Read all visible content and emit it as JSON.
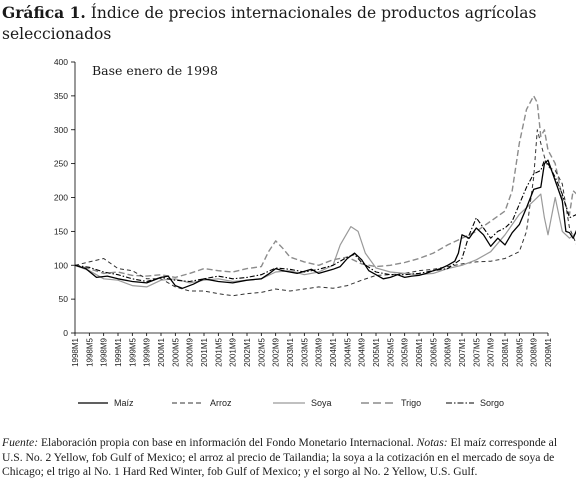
{
  "title": {
    "label": "Gráfica 1.",
    "text": "Índice de precios internacionales de productos agrícolas seleccionados"
  },
  "note": {
    "source_label": "Fuente:",
    "source_text": " Elaboración propia con base en información del Fondo Monetario Internacional. ",
    "notes_label": "Notas:",
    "notes_text": " El maíz corresponde al U.S. No. 2 Yellow, fob Gulf of Mexico; el arroz al precio de Tailandia; la soya a la cotización en el mercado de soya de Chicago; el trigo al No. 1 Hard Red Winter, fob Gulf of Mexico; y el sorgo al No. 2 Yellow, U.S. Gulf."
  },
  "chart_data": {
    "type": "line",
    "annotation": "Base enero de 1998",
    "ylim": [
      0,
      400
    ],
    "yticks": [
      0,
      50,
      100,
      150,
      200,
      250,
      300,
      350,
      400
    ],
    "xlabels": [
      "1998M1",
      "1998M5",
      "1998M9",
      "1999M1",
      "1999M5",
      "1999M9",
      "2000M1",
      "2000M5",
      "2000M9",
      "2001M1",
      "2001M5",
      "2001M9",
      "2002M1",
      "2002M5",
      "2002M9",
      "2003M1",
      "2003M5",
      "2003M9",
      "2004M1",
      "2004M5",
      "2004M9",
      "2005M1",
      "2005M5",
      "2005M9",
      "2006M1",
      "2006M5",
      "2006M9",
      "2007M1",
      "2007M5",
      "2007M9",
      "2008M1",
      "2008M5",
      "2008M9",
      "2009M1"
    ],
    "x_step_months": 4,
    "grid": false,
    "legend_position": "bottom",
    "series": [
      {
        "name": "Maíz",
        "style": "solid",
        "color": "#000000",
        "width": 1.3,
        "points": [
          [
            0,
            100
          ],
          [
            3,
            95
          ],
          [
            6,
            82
          ],
          [
            9,
            84
          ],
          [
            12,
            80
          ],
          [
            16,
            76
          ],
          [
            20,
            74
          ],
          [
            24,
            82
          ],
          [
            26,
            84
          ],
          [
            28,
            70
          ],
          [
            30,
            66
          ],
          [
            33,
            72
          ],
          [
            36,
            80
          ],
          [
            40,
            76
          ],
          [
            44,
            74
          ],
          [
            48,
            78
          ],
          [
            52,
            80
          ],
          [
            54,
            87
          ],
          [
            56,
            95
          ],
          [
            58,
            92
          ],
          [
            62,
            88
          ],
          [
            66,
            94
          ],
          [
            68,
            88
          ],
          [
            72,
            94
          ],
          [
            74,
            98
          ],
          [
            76,
            110
          ],
          [
            78,
            118
          ],
          [
            80,
            108
          ],
          [
            82,
            92
          ],
          [
            84,
            86
          ],
          [
            86,
            80
          ],
          [
            88,
            82
          ],
          [
            90,
            86
          ],
          [
            92,
            82
          ],
          [
            94,
            84
          ],
          [
            96,
            85
          ],
          [
            98,
            88
          ],
          [
            100,
            92
          ],
          [
            102,
            95
          ],
          [
            104,
            100
          ],
          [
            106,
            106
          ],
          [
            107,
            118
          ],
          [
            108,
            145
          ],
          [
            110,
            140
          ],
          [
            112,
            155
          ],
          [
            114,
            145
          ],
          [
            116,
            128
          ],
          [
            118,
            140
          ],
          [
            120,
            130
          ],
          [
            122,
            148
          ],
          [
            124,
            160
          ],
          [
            126,
            185
          ],
          [
            128,
            212
          ],
          [
            130,
            215
          ],
          [
            131,
            250
          ],
          [
            132,
            255
          ],
          [
            134,
            225
          ],
          [
            136,
            195
          ],
          [
            137,
            150
          ],
          [
            138,
            148
          ],
          [
            139,
            140
          ],
          [
            140,
            152
          ]
        ]
      },
      {
        "name": "Arroz",
        "style": "dashed",
        "color": "#333333",
        "width": 1.0,
        "points": [
          [
            0,
            100
          ],
          [
            4,
            105
          ],
          [
            8,
            110
          ],
          [
            12,
            95
          ],
          [
            16,
            92
          ],
          [
            20,
            80
          ],
          [
            24,
            80
          ],
          [
            28,
            68
          ],
          [
            32,
            62
          ],
          [
            36,
            62
          ],
          [
            40,
            58
          ],
          [
            44,
            55
          ],
          [
            48,
            58
          ],
          [
            52,
            60
          ],
          [
            56,
            65
          ],
          [
            60,
            62
          ],
          [
            64,
            65
          ],
          [
            68,
            68
          ],
          [
            72,
            66
          ],
          [
            76,
            70
          ],
          [
            80,
            78
          ],
          [
            84,
            85
          ],
          [
            88,
            86
          ],
          [
            92,
            88
          ],
          [
            96,
            92
          ],
          [
            100,
            94
          ],
          [
            104,
            98
          ],
          [
            108,
            102
          ],
          [
            112,
            105
          ],
          [
            116,
            106
          ],
          [
            120,
            110
          ],
          [
            124,
            120
          ],
          [
            126,
            150
          ],
          [
            128,
            230
          ],
          [
            129,
            300
          ],
          [
            130,
            280
          ],
          [
            131,
            260
          ],
          [
            132,
            245
          ],
          [
            134,
            240
          ],
          [
            136,
            220
          ],
          [
            138,
            155
          ],
          [
            140,
            130
          ]
        ]
      },
      {
        "name": "Soya",
        "style": "solid",
        "color": "#9a9a9a",
        "width": 1.2,
        "points": [
          [
            0,
            100
          ],
          [
            4,
            92
          ],
          [
            8,
            80
          ],
          [
            12,
            78
          ],
          [
            16,
            70
          ],
          [
            20,
            68
          ],
          [
            24,
            78
          ],
          [
            28,
            80
          ],
          [
            32,
            74
          ],
          [
            36,
            78
          ],
          [
            40,
            80
          ],
          [
            44,
            76
          ],
          [
            48,
            78
          ],
          [
            52,
            80
          ],
          [
            56,
            90
          ],
          [
            60,
            92
          ],
          [
            64,
            86
          ],
          [
            68,
            90
          ],
          [
            72,
            100
          ],
          [
            74,
            130
          ],
          [
            76,
            148
          ],
          [
            77,
            157
          ],
          [
            79,
            150
          ],
          [
            81,
            118
          ],
          [
            84,
            96
          ],
          [
            88,
            90
          ],
          [
            92,
            88
          ],
          [
            96,
            86
          ],
          [
            100,
            88
          ],
          [
            104,
            95
          ],
          [
            108,
            100
          ],
          [
            112,
            108
          ],
          [
            116,
            120
          ],
          [
            120,
            145
          ],
          [
            124,
            175
          ],
          [
            128,
            195
          ],
          [
            130,
            205
          ],
          [
            131,
            170
          ],
          [
            132,
            145
          ],
          [
            134,
            200
          ],
          [
            136,
            150
          ],
          [
            138,
            140
          ],
          [
            140,
            148
          ]
        ]
      },
      {
        "name": "Trigo",
        "style": "dashed",
        "color": "#8c8c8c",
        "width": 1.4,
        "points": [
          [
            0,
            100
          ],
          [
            4,
            95
          ],
          [
            8,
            88
          ],
          [
            12,
            90
          ],
          [
            16,
            85
          ],
          [
            20,
            84
          ],
          [
            24,
            86
          ],
          [
            28,
            82
          ],
          [
            32,
            88
          ],
          [
            36,
            95
          ],
          [
            40,
            92
          ],
          [
            44,
            90
          ],
          [
            48,
            95
          ],
          [
            52,
            98
          ],
          [
            54,
            120
          ],
          [
            56,
            136
          ],
          [
            58,
            125
          ],
          [
            60,
            112
          ],
          [
            64,
            105
          ],
          [
            68,
            100
          ],
          [
            72,
            108
          ],
          [
            76,
            112
          ],
          [
            80,
            102
          ],
          [
            84,
            98
          ],
          [
            88,
            100
          ],
          [
            92,
            104
          ],
          [
            96,
            110
          ],
          [
            100,
            118
          ],
          [
            104,
            130
          ],
          [
            108,
            140
          ],
          [
            112,
            150
          ],
          [
            116,
            165
          ],
          [
            120,
            180
          ],
          [
            122,
            210
          ],
          [
            124,
            280
          ],
          [
            126,
            330
          ],
          [
            128,
            350
          ],
          [
            129,
            340
          ],
          [
            130,
            290
          ],
          [
            131,
            300
          ],
          [
            132,
            270
          ],
          [
            134,
            250
          ],
          [
            136,
            200
          ],
          [
            138,
            175
          ],
          [
            139,
            210
          ],
          [
            140,
            205
          ]
        ]
      },
      {
        "name": "Sorgo",
        "style": "dashdot",
        "color": "#000000",
        "width": 1.1,
        "points": [
          [
            0,
            100
          ],
          [
            4,
            97
          ],
          [
            8,
            90
          ],
          [
            12,
            86
          ],
          [
            16,
            80
          ],
          [
            20,
            76
          ],
          [
            24,
            82
          ],
          [
            28,
            78
          ],
          [
            32,
            76
          ],
          [
            36,
            80
          ],
          [
            40,
            84
          ],
          [
            44,
            80
          ],
          [
            48,
            82
          ],
          [
            52,
            86
          ],
          [
            56,
            96
          ],
          [
            60,
            94
          ],
          [
            64,
            90
          ],
          [
            68,
            94
          ],
          [
            72,
            100
          ],
          [
            76,
            112
          ],
          [
            78,
            116
          ],
          [
            80,
            104
          ],
          [
            84,
            90
          ],
          [
            88,
            86
          ],
          [
            92,
            86
          ],
          [
            96,
            88
          ],
          [
            100,
            92
          ],
          [
            104,
            95
          ],
          [
            108,
            110
          ],
          [
            110,
            145
          ],
          [
            112,
            170
          ],
          [
            114,
            155
          ],
          [
            116,
            140
          ],
          [
            118,
            150
          ],
          [
            120,
            155
          ],
          [
            122,
            165
          ],
          [
            124,
            190
          ],
          [
            126,
            215
          ],
          [
            128,
            235
          ],
          [
            130,
            240
          ],
          [
            131,
            255
          ],
          [
            132,
            250
          ],
          [
            134,
            230
          ],
          [
            136,
            205
          ],
          [
            138,
            170
          ],
          [
            140,
            175
          ]
        ]
      }
    ]
  }
}
